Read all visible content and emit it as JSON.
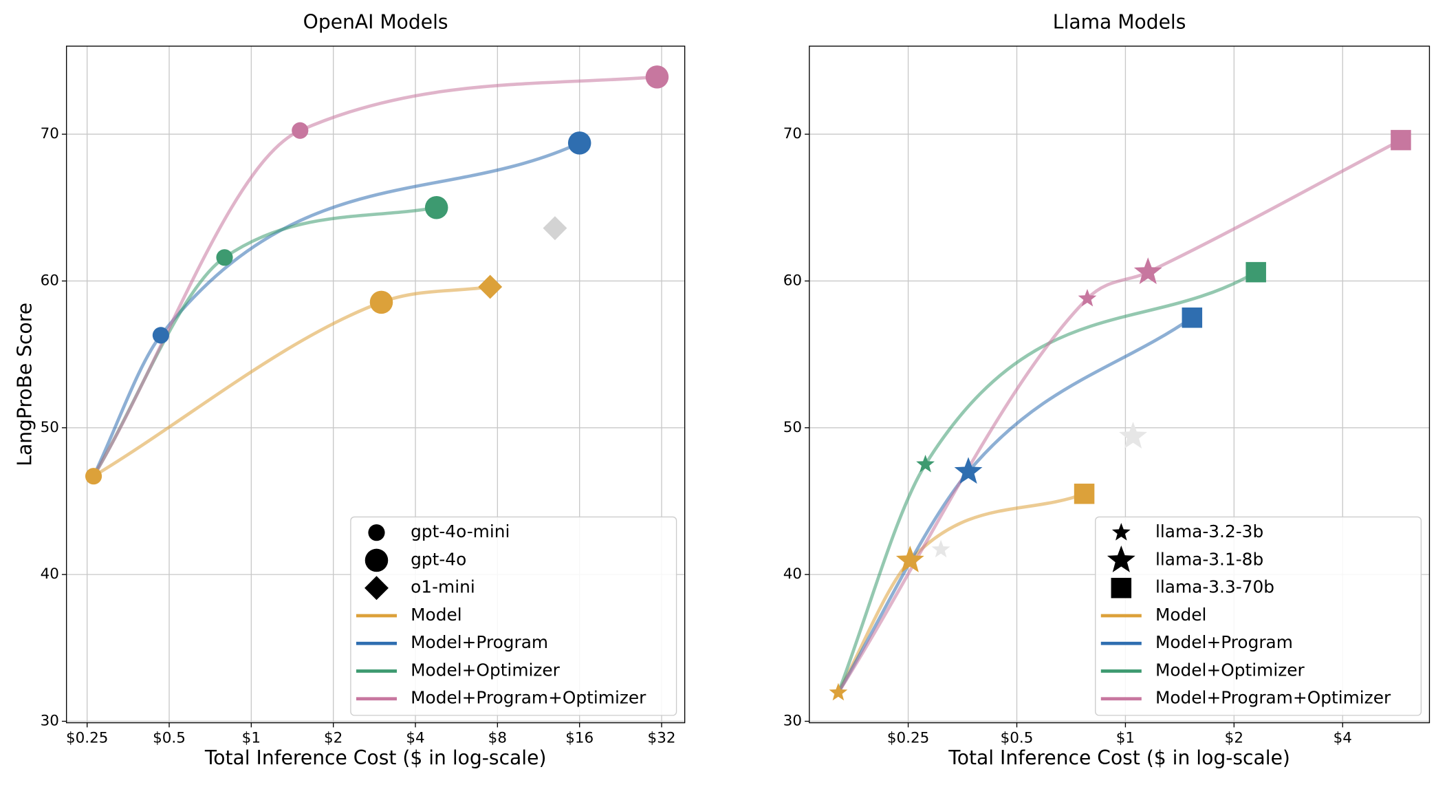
{
  "chart_data": [
    {
      "type": "line",
      "title": "OpenAI Models",
      "xlabel": "Total Inference Cost ($ in log-scale)",
      "ylabel": "LangProBe Score",
      "xscale": "log",
      "xlim": [
        0.21,
        38.9
      ],
      "ylim": [
        29.9,
        76
      ],
      "xticks": [
        {
          "value": 0.25,
          "label": "$0.25"
        },
        {
          "value": 0.5,
          "label": "$0.5"
        },
        {
          "value": 1,
          "label": "$1"
        },
        {
          "value": 2,
          "label": "$2"
        },
        {
          "value": 4,
          "label": "$4"
        },
        {
          "value": 8,
          "label": "$8"
        },
        {
          "value": 16,
          "label": "$16"
        },
        {
          "value": 32,
          "label": "$32"
        }
      ],
      "yticks": [
        30,
        40,
        50,
        60,
        70
      ],
      "grid": true,
      "legend": "lower right",
      "models": [
        {
          "name": "gpt-4o-mini",
          "marker": "circle",
          "size": "small"
        },
        {
          "name": "gpt-4o",
          "marker": "circle",
          "size": "large"
        },
        {
          "name": "o1-mini",
          "marker": "diamond",
          "size": "large"
        }
      ],
      "series": [
        {
          "name": "Model",
          "color": "#dca13a",
          "x": [
            0.264,
            3.0,
            7.52
          ],
          "values": [
            46.7,
            58.55,
            59.6
          ]
        },
        {
          "name": "Model+Program",
          "color": "#2f6eb0",
          "colors": [
            "#2f6eb0",
            "#2f6eb0",
            "#d3d3d3"
          ],
          "x": [
            0.466,
            16.0,
            13.0
          ],
          "values": [
            56.3,
            69.4,
            63.6
          ]
        },
        {
          "name": "Model+Optimizer",
          "color": "#3d9a70",
          "x": [
            0.798,
            4.78,
            null
          ],
          "values": [
            61.6,
            65.0,
            null
          ]
        },
        {
          "name": "Model+Program+Optimizer",
          "color": "#c7779f",
          "x": [
            1.51,
            30.8,
            null
          ],
          "values": [
            70.25,
            73.9,
            null
          ]
        }
      ]
    },
    {
      "type": "line",
      "title": "Llama Models",
      "xlabel": "Total Inference Cost ($ in log-scale)",
      "xscale": "log",
      "xlim": [
        0.133,
        6.96
      ],
      "ylim": [
        29.9,
        76
      ],
      "xticks": [
        {
          "value": 0.25,
          "label": "$0.25"
        },
        {
          "value": 0.5,
          "label": "$0.5"
        },
        {
          "value": 1,
          "label": "$1"
        },
        {
          "value": 2,
          "label": "$2"
        },
        {
          "value": 4,
          "label": "$4"
        }
      ],
      "yticks": [
        30,
        40,
        50,
        60,
        70
      ],
      "grid": true,
      "legend": "lower right",
      "models": [
        {
          "name": "llama-3.2-3b",
          "marker": "star",
          "size": "small"
        },
        {
          "name": "llama-3.1-8b",
          "marker": "star",
          "size": "large"
        },
        {
          "name": "llama-3.3-70b",
          "marker": "square",
          "size": "large"
        }
      ],
      "series": [
        {
          "name": "Model",
          "color": "#dca13a",
          "x": [
            0.16,
            0.253,
            0.769
          ],
          "values": [
            31.95,
            40.96,
            45.5
          ]
        },
        {
          "name": "Model+Program",
          "color": "#2f6eb0",
          "colors": [
            "#e6e6e6",
            "#2f6eb0",
            "#2f6eb0"
          ],
          "x": [
            0.308,
            0.367,
            1.53
          ],
          "values": [
            41.7,
            47.0,
            57.5
          ]
        },
        {
          "name": "Model+Optimizer",
          "color": "#3d9a70",
          "colors": [
            "#3d9a70",
            "#e6e6e6",
            "#3d9a70"
          ],
          "x": [
            0.279,
            1.05,
            2.3
          ],
          "values": [
            47.5,
            49.4,
            60.6
          ]
        },
        {
          "name": "Model+Program+Optimizer",
          "color": "#c7779f",
          "x": [
            0.784,
            1.155,
            5.8
          ],
          "values": [
            58.8,
            60.6,
            69.6
          ]
        }
      ]
    }
  ]
}
